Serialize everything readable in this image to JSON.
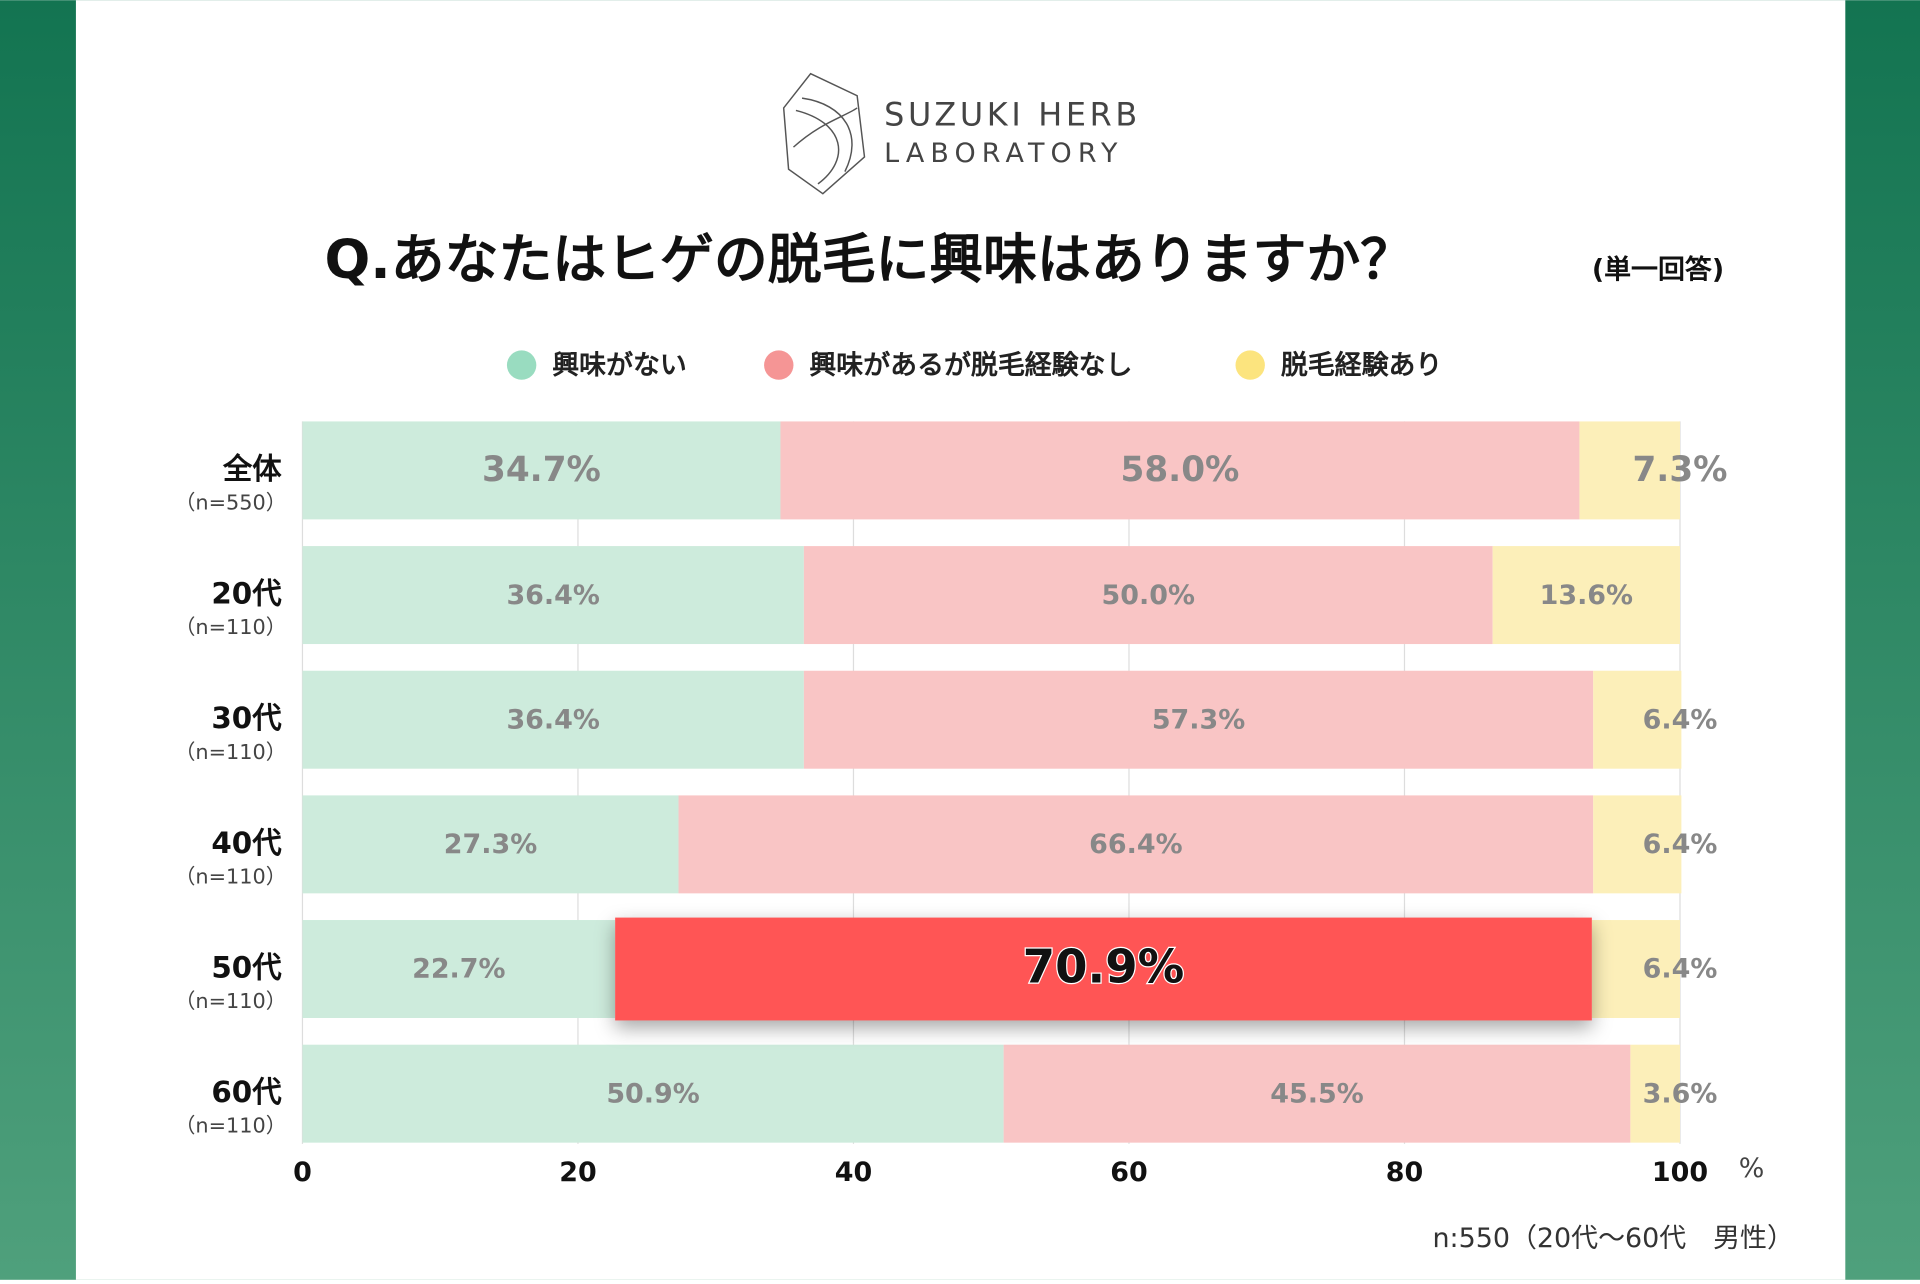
{
  "logo": {
    "line1": "SUZUKI HERB",
    "line2": "LABORATORY"
  },
  "chart_data": {
    "type": "stacked_barh",
    "title": "Q.あなたはヒゲの脱毛に興味はありますか？",
    "subtitle": "(単一回答)",
    "categories": [
      "全体",
      "20代",
      "30代",
      "40代",
      "50代",
      "60代"
    ],
    "sample_sizes": [
      "（n=550）",
      "（n=110）",
      "（n=110）",
      "（n=110）",
      "（n=110）",
      "（n=110）"
    ],
    "series": [
      {
        "name": "興味がない",
        "color": "#cdebdc",
        "legend_color": "#99dcc0",
        "values": [
          34.7,
          36.4,
          36.4,
          27.3,
          22.7,
          50.9
        ],
        "value_labels": [
          "34.7%",
          "36.4%",
          "36.4%",
          "27.3%",
          "22.7%",
          "50.9%"
        ]
      },
      {
        "name": "興味があるが脱毛経験なし",
        "color": "#f9c5c5",
        "legend_color": "#f59595",
        "colors": [
          "#f9c5c5",
          "#f9c5c5",
          "#f9c5c5",
          "#f9c5c5",
          "#ff5555",
          "#f9c5c5"
        ],
        "values": [
          58.0,
          50.0,
          57.3,
          66.4,
          70.9,
          45.5
        ],
        "value_labels": [
          "58.0%",
          "50.0%",
          "57.3%",
          "66.4%",
          "70.9%",
          "45.5%"
        ]
      },
      {
        "name": "脱毛経験あり",
        "color": "#fcefb9",
        "legend_color": "#fce47e",
        "values": [
          7.3,
          13.6,
          6.4,
          6.4,
          6.4,
          3.6
        ],
        "value_labels": [
          "7.3%",
          "13.6%",
          "6.4%",
          "6.4%",
          "6.4%",
          "3.6%"
        ]
      }
    ],
    "xlim": [
      0,
      100
    ],
    "xticks": [
      0,
      20,
      40,
      60,
      80,
      100
    ],
    "x_unit": "%",
    "grid": true,
    "note": "n:550（20代〜60代　男性）"
  }
}
